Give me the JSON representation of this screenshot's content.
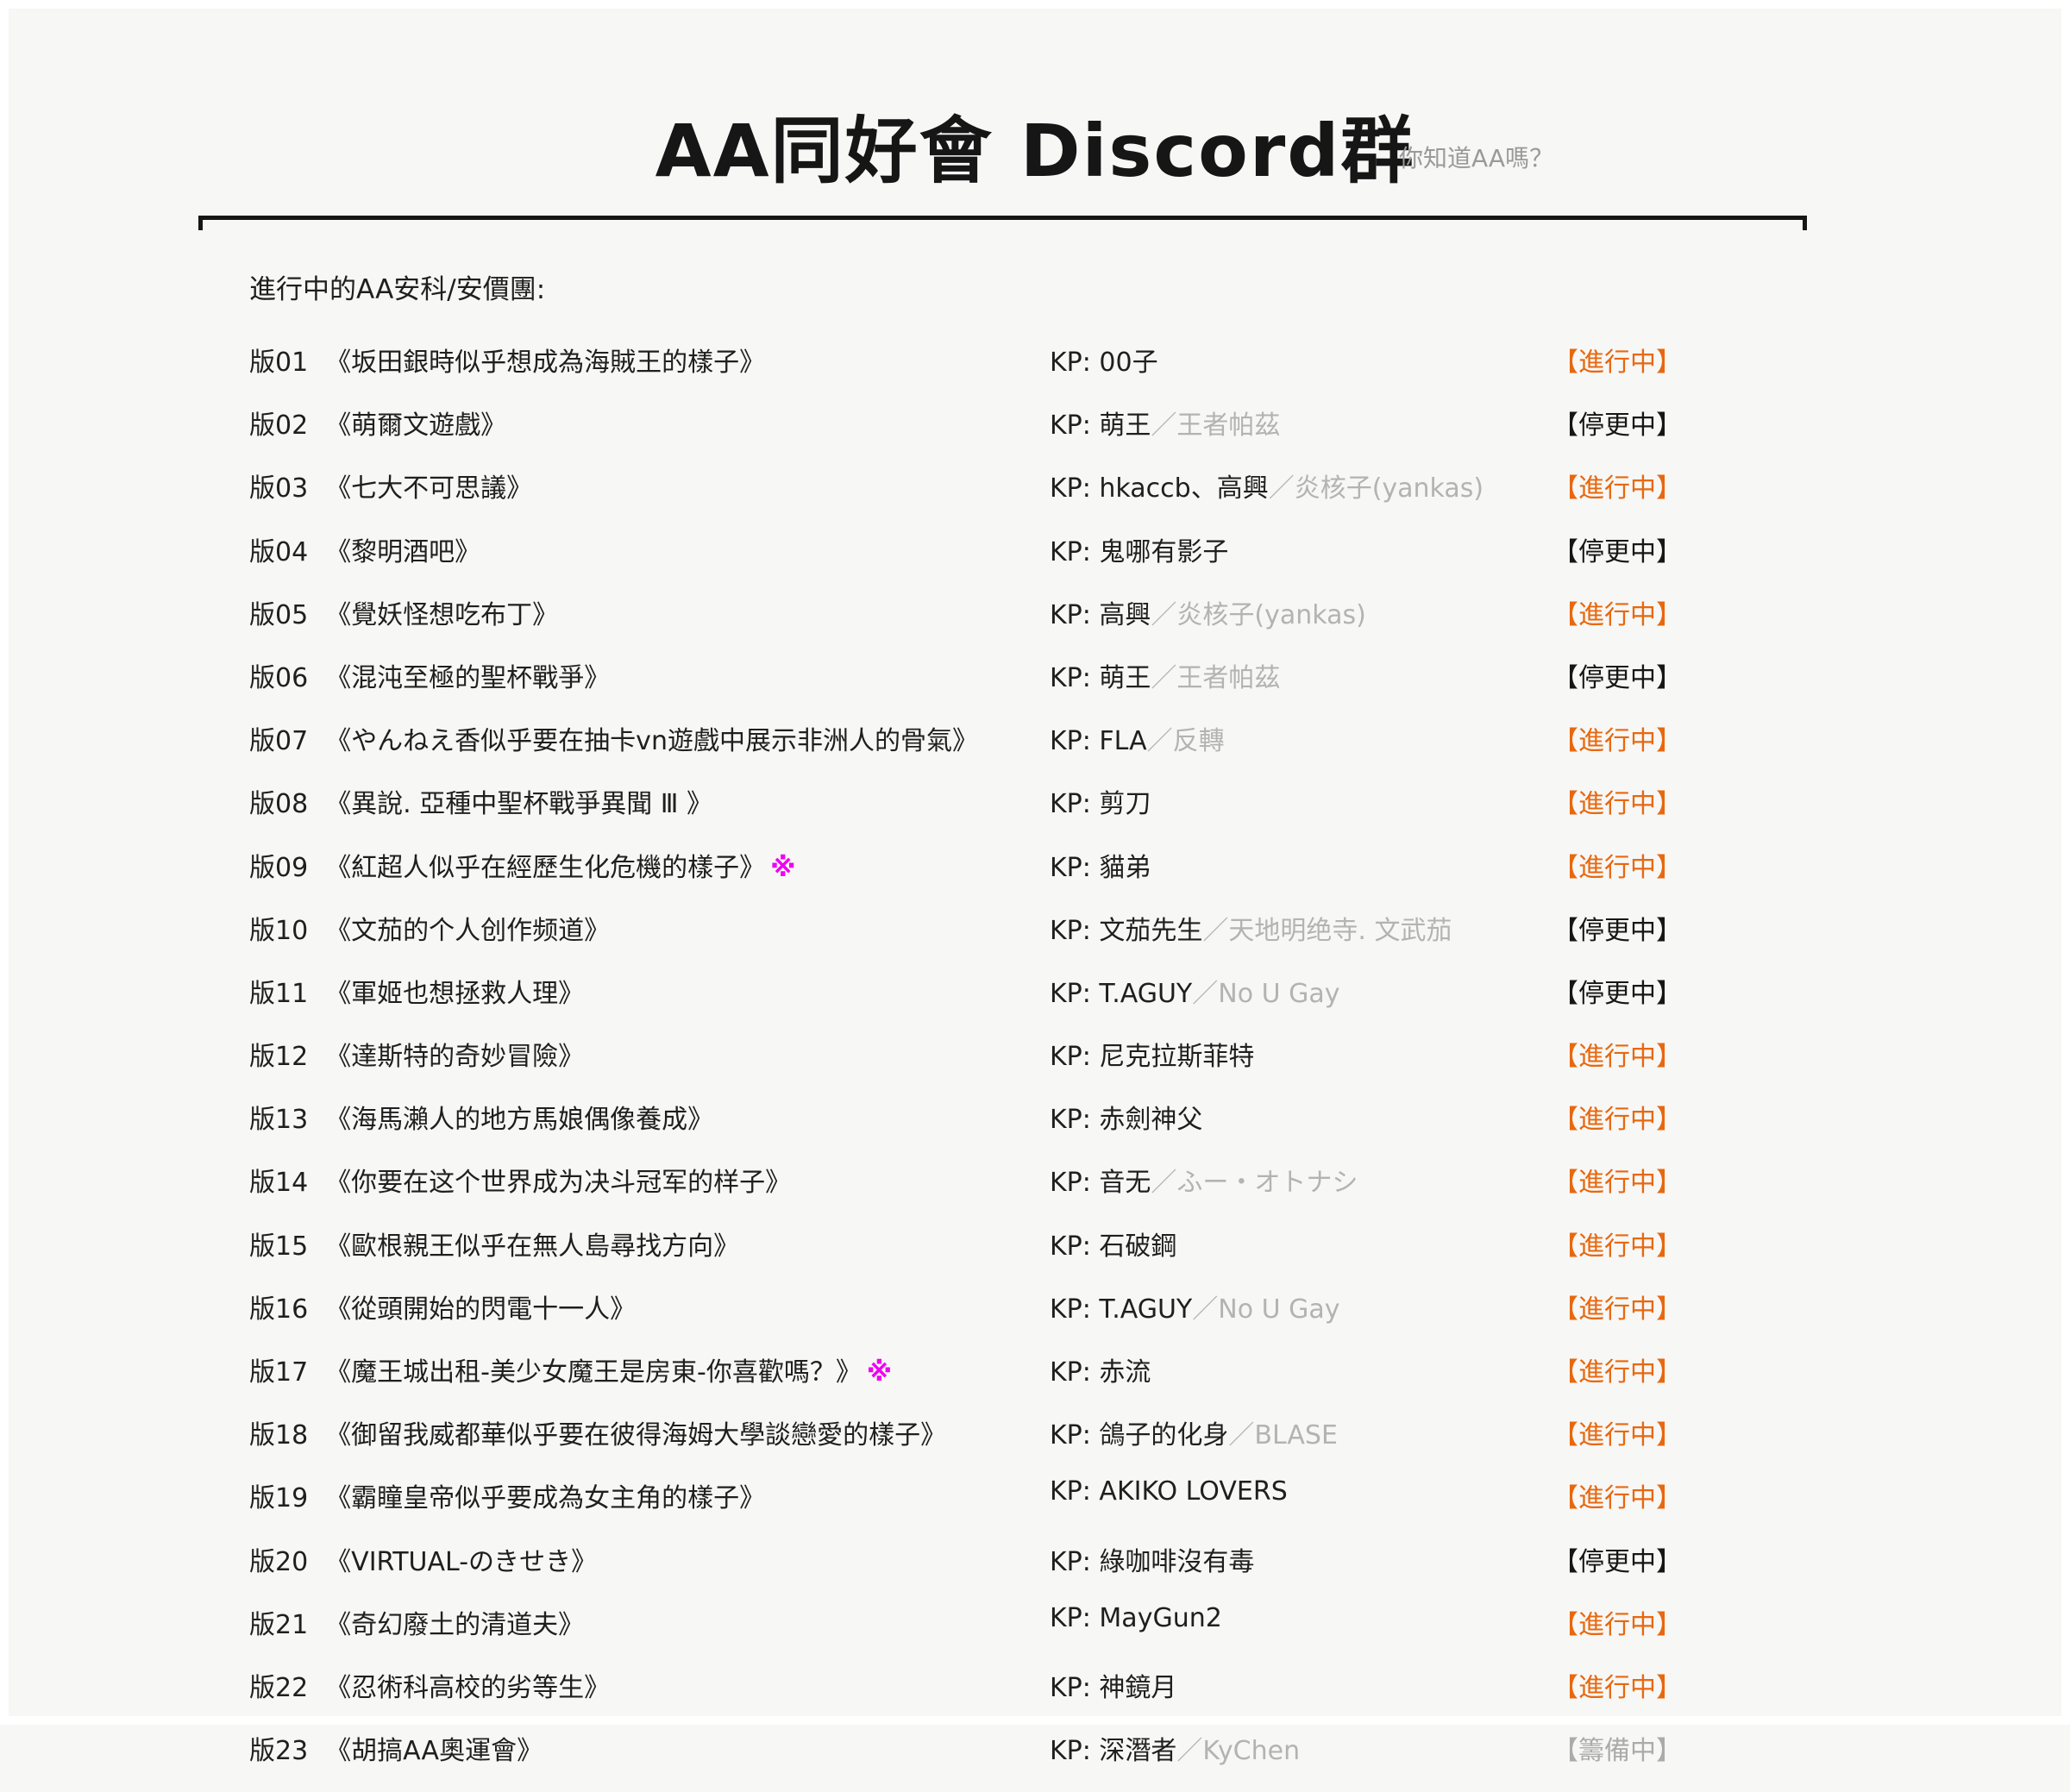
{
  "page": {
    "title": "AA同好會 Discord群",
    "subtitle": "你知道AA嗎？",
    "list_header": "進行中的AA安科/安價團:",
    "kp_prefix": "KP: "
  },
  "colors": {
    "background": "#f7f7f6",
    "text": "#1f1f1f",
    "muted_grey": "#b3b3b3",
    "status_active_orange": "#e8680f",
    "status_paused_black": "#161616",
    "status_preparing_grey": "#ababab",
    "flag_magenta": "#f000f0"
  },
  "rows": [
    {
      "id": "版01",
      "title": "《坂田銀時似乎想成為海賊王的樣子》",
      "flag": "",
      "kp": "00子",
      "kp_alt": "",
      "status_label": "【進行中】",
      "status_type": "active"
    },
    {
      "id": "版02",
      "title": "《萌爾文遊戲》",
      "flag": "",
      "kp": "萌王",
      "kp_alt": "／王者帕茲",
      "status_label": "【停更中】",
      "status_type": "paused"
    },
    {
      "id": "版03",
      "title": "《七大不可思議》",
      "flag": "",
      "kp": "hkaccb、高興",
      "kp_alt": "／炎核子(yankas)",
      "status_label": "【進行中】",
      "status_type": "active"
    },
    {
      "id": "版04",
      "title": "《黎明酒吧》",
      "flag": "",
      "kp": "鬼哪有影子",
      "kp_alt": "",
      "status_label": "【停更中】",
      "status_type": "paused"
    },
    {
      "id": "版05",
      "title": "《覺妖怪想吃布丁》",
      "flag": "",
      "kp": "高興",
      "kp_alt": "／炎核子(yankas)",
      "status_label": "【進行中】",
      "status_type": "active"
    },
    {
      "id": "版06",
      "title": "《混沌至極的聖杯戰爭》",
      "flag": "",
      "kp": "萌王",
      "kp_alt": "／王者帕茲",
      "status_label": "【停更中】",
      "status_type": "paused"
    },
    {
      "id": "版07",
      "title": "《やんねえ香似乎要在抽卡vn遊戲中展示非洲人的骨氣》",
      "flag": "",
      "kp": "FLA",
      "kp_alt": "／反轉",
      "status_label": "【進行中】",
      "status_type": "active"
    },
    {
      "id": "版08",
      "title": "《異說. 亞種中聖杯戰爭異聞 Ⅲ 》",
      "flag": "",
      "kp": "剪刀",
      "kp_alt": "",
      "status_label": "【進行中】",
      "status_type": "active"
    },
    {
      "id": "版09",
      "title": "《紅超人似乎在經歷生化危機的樣子》",
      "flag": "※",
      "kp": "貓弟",
      "kp_alt": "",
      "status_label": "【進行中】",
      "status_type": "active"
    },
    {
      "id": "版10",
      "title": "《文茄的个人创作频道》",
      "flag": "",
      "kp": "文茄先生",
      "kp_alt": "／天地明绝寺. 文武茄",
      "status_label": "【停更中】",
      "status_type": "paused"
    },
    {
      "id": "版11",
      "title": "《軍姬也想拯救人理》",
      "flag": "",
      "kp": "T.AGUY",
      "kp_alt": "／No U Gay",
      "status_label": "【停更中】",
      "status_type": "paused"
    },
    {
      "id": "版12",
      "title": "《達斯特的奇妙冒險》",
      "flag": "",
      "kp": "尼克拉斯菲特",
      "kp_alt": "",
      "status_label": "【進行中】",
      "status_type": "active"
    },
    {
      "id": "版13",
      "title": "《海馬瀨人的地方馬娘偶像養成》",
      "flag": "",
      "kp": "赤劍神父",
      "kp_alt": "",
      "status_label": "【進行中】",
      "status_type": "active"
    },
    {
      "id": "版14",
      "title": "《你要在这个世界成为决斗冠军的样子》",
      "flag": "",
      "kp": "音无",
      "kp_alt": "／ふー・オトナシ",
      "status_label": "【進行中】",
      "status_type": "active"
    },
    {
      "id": "版15",
      "title": "《歐根親王似乎在無人島尋找方向》",
      "flag": "",
      "kp": "石破鋼",
      "kp_alt": "",
      "status_label": "【進行中】",
      "status_type": "active"
    },
    {
      "id": "版16",
      "title": "《從頭開始的閃電十一人》",
      "flag": "",
      "kp": "T.AGUY",
      "kp_alt": "／No U Gay",
      "status_label": "【進行中】",
      "status_type": "active"
    },
    {
      "id": "版17",
      "title": "《魔王城出租-美少女魔王是房東-你喜歡嗎？》",
      "flag": "※",
      "kp": "赤流",
      "kp_alt": "",
      "status_label": "【進行中】",
      "status_type": "active"
    },
    {
      "id": "版18",
      "title": "《御留我威都華似乎要在彼得海姆大學談戀愛的樣子》",
      "flag": "",
      "kp": "鴿子的化身",
      "kp_alt": "／BLASE",
      "status_label": "【進行中】",
      "status_type": "active"
    },
    {
      "id": "版19",
      "title": "《霸瞳皇帝似乎要成為女主角的樣子》",
      "flag": "",
      "kp": "AKIKO LOVERS",
      "kp_alt": "",
      "status_label": "【進行中】",
      "status_type": "active"
    },
    {
      "id": "版20",
      "title": "《VIRTUAL-のきせき》",
      "flag": "",
      "kp": "綠咖啡沒有毒",
      "kp_alt": "",
      "status_label": "【停更中】",
      "status_type": "paused"
    },
    {
      "id": "版21",
      "title": "《奇幻廢土的清道夫》",
      "flag": "",
      "kp": "MayGun2",
      "kp_alt": "",
      "status_label": "【進行中】",
      "status_type": "active"
    },
    {
      "id": "版22",
      "title": "《忍術科高校的劣等生》",
      "flag": "",
      "kp": "神鏡月",
      "kp_alt": "",
      "status_label": "【進行中】",
      "status_type": "active"
    },
    {
      "id": "版23",
      "title": "《胡搞AA奧運會》",
      "flag": "",
      "kp": "深潛者",
      "kp_alt": "／KyChen",
      "status_label": "【籌備中】",
      "status_type": "preparing"
    }
  ]
}
